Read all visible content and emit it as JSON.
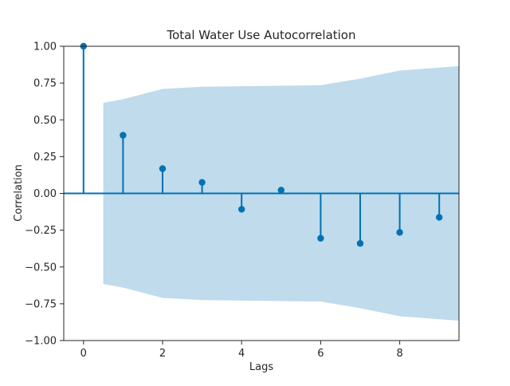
{
  "chart_data": {
    "type": "stem",
    "title": "Total Water Use Autocorrelation",
    "xlabel": "Lags",
    "ylabel": "Correlation",
    "xlim": [
      -0.5,
      9.5
    ],
    "ylim": [
      -1.0,
      1.0
    ],
    "x_ticks": [
      0,
      2,
      4,
      6,
      8
    ],
    "y_ticks": [
      -1.0,
      -0.75,
      -0.5,
      -0.25,
      0.0,
      0.25,
      0.5,
      0.75,
      1.0
    ],
    "y_tick_labels": [
      "−1.00",
      "−0.75",
      "−0.50",
      "−0.25",
      "0.00",
      "0.25",
      "0.50",
      "0.75",
      "1.00"
    ],
    "grid": false,
    "series": [
      {
        "x": [
          0,
          1,
          2,
          3,
          4,
          5,
          6,
          7,
          8,
          9
        ],
        "values": [
          1.0,
          0.395,
          0.168,
          0.075,
          -0.108,
          0.022,
          -0.305,
          -0.34,
          -0.265,
          -0.163
        ]
      }
    ],
    "confidence_band": {
      "x": [
        0.5,
        1,
        2,
        3,
        4,
        5,
        6,
        7,
        8,
        9,
        9.5
      ],
      "upper": [
        0.615,
        0.64,
        0.71,
        0.725,
        0.728,
        0.732,
        0.735,
        0.78,
        0.835,
        0.855,
        0.865
      ],
      "lower": [
        -0.615,
        -0.64,
        -0.71,
        -0.725,
        -0.728,
        -0.732,
        -0.735,
        -0.78,
        -0.835,
        -0.855,
        -0.865
      ]
    },
    "colors": {
      "stem": "#0072B2",
      "band": "#A6CDE4",
      "zero_line": "#0072B2"
    }
  }
}
